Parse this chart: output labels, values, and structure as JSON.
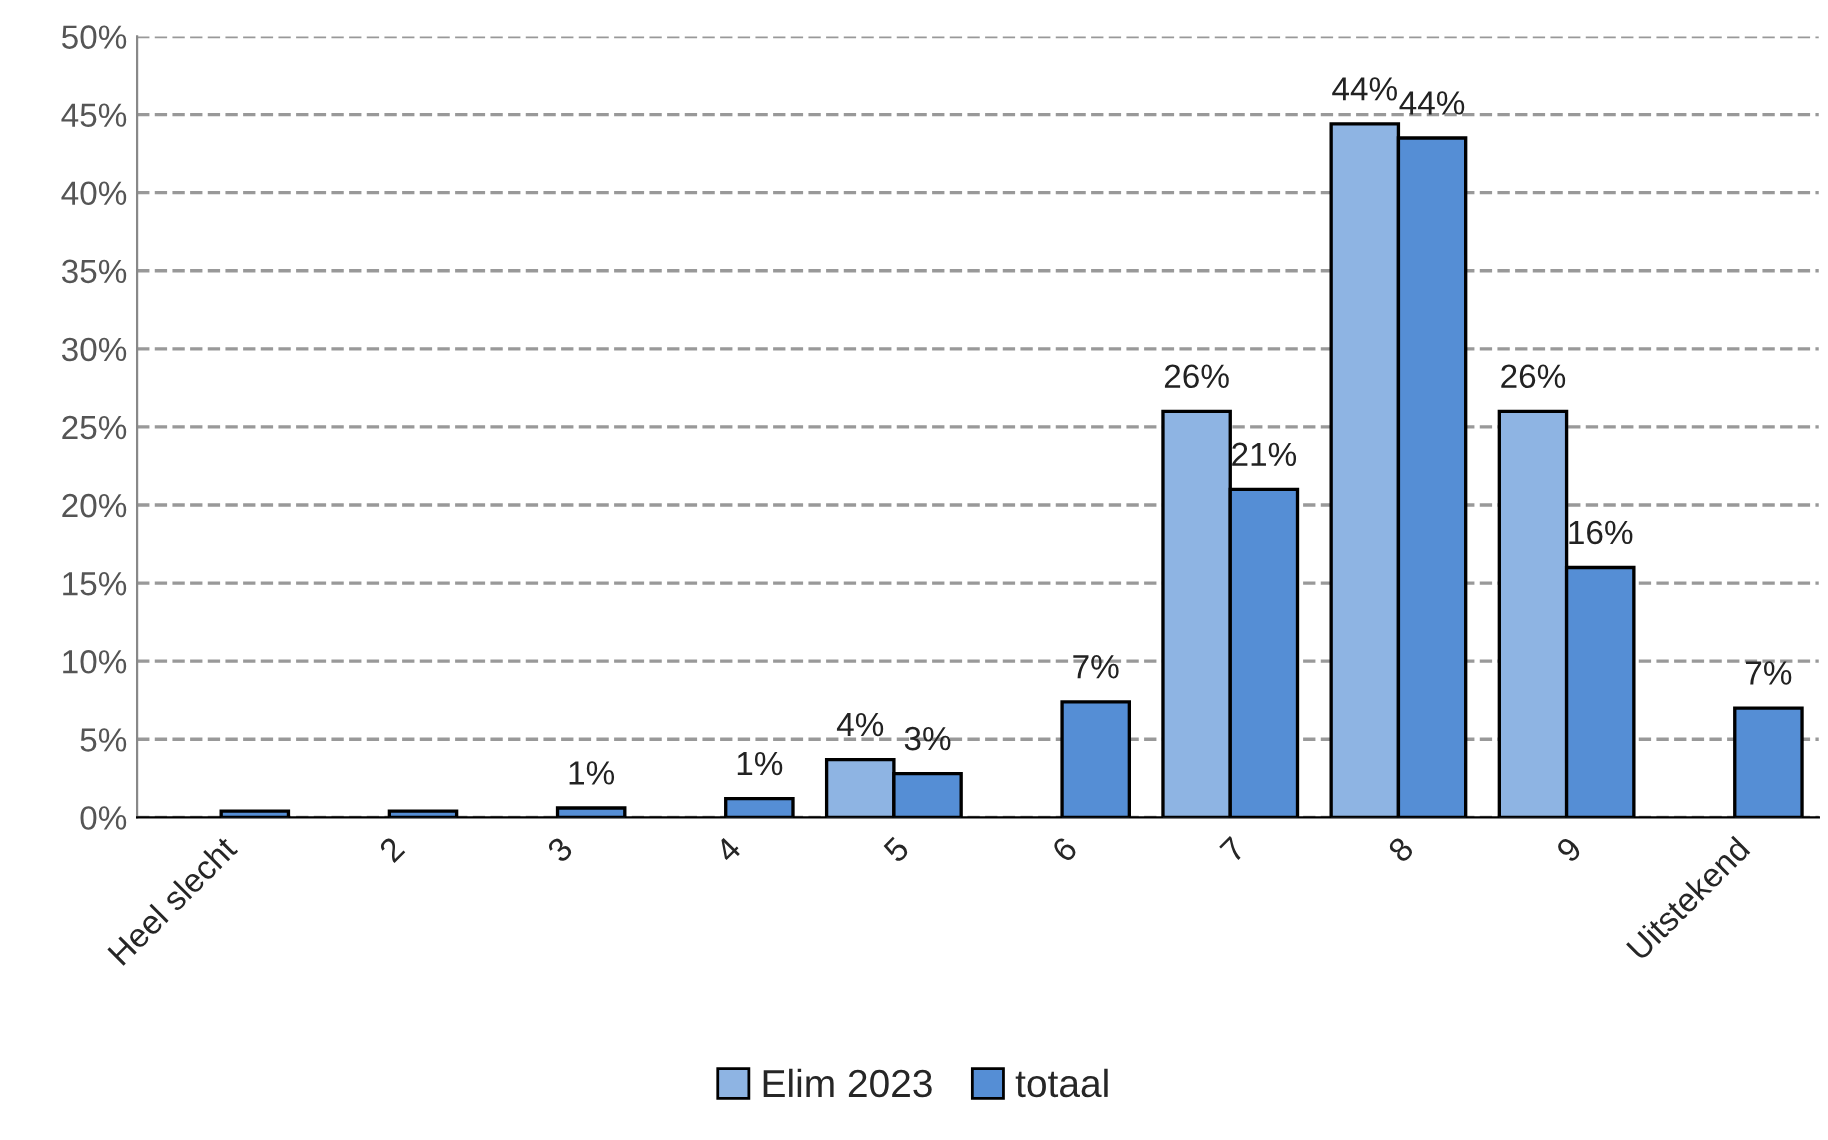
{
  "chart_data": {
    "type": "bar",
    "categories": [
      "Heel slecht",
      "2",
      "3",
      "4",
      "5",
      "6",
      "7",
      "8",
      "9",
      "Uitstekend"
    ],
    "series": [
      {
        "name": "Elim 2023",
        "color": "#8eb4e3",
        "values": [
          null,
          null,
          null,
          null,
          3.7,
          null,
          26,
          44.4,
          26,
          null
        ],
        "value_labels": [
          null,
          null,
          null,
          null,
          "4%",
          null,
          "26%",
          "44%",
          "26%",
          null
        ]
      },
      {
        "name": "totaal",
        "color": "#558ed5",
        "values": [
          0.4,
          0.4,
          0.6,
          1.2,
          2.8,
          7.4,
          21,
          43.5,
          16,
          7
        ],
        "value_labels": [
          null,
          null,
          "1%",
          "1%",
          "3%",
          "7%",
          "21%",
          "44%",
          "16%",
          "7%"
        ]
      }
    ],
    "ylim": [
      0,
      50
    ],
    "yticks": [
      {
        "value": 0,
        "label": "0%"
      },
      {
        "value": 5,
        "label": "5%"
      },
      {
        "value": 10,
        "label": "10%"
      },
      {
        "value": 15,
        "label": "15%"
      },
      {
        "value": 20,
        "label": "20%"
      },
      {
        "value": 25,
        "label": "25%"
      },
      {
        "value": 30,
        "label": "30%"
      },
      {
        "value": 35,
        "label": "35%"
      },
      {
        "value": 40,
        "label": "40%"
      },
      {
        "value": 45,
        "label": "45%"
      },
      {
        "value": 50,
        "label": "50%"
      }
    ],
    "grid": "y",
    "legend": "bottom"
  }
}
